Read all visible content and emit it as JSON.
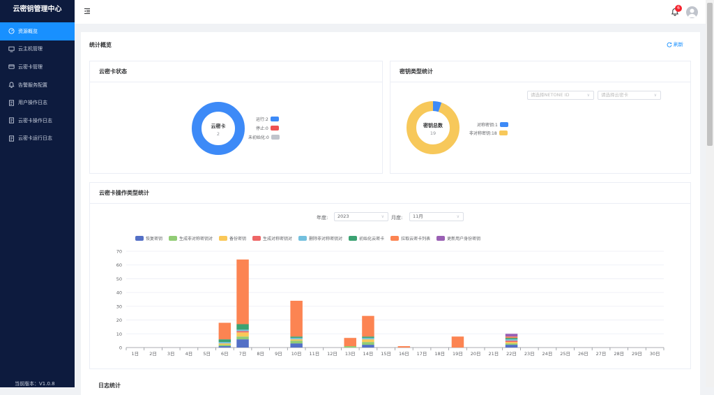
{
  "app": {
    "title": "云密钥管理中心",
    "version": "当前版本：V1.0.8"
  },
  "sidebar": {
    "items": [
      {
        "label": "资源概览",
        "icon": "dashboard-icon",
        "active": true
      },
      {
        "label": "云主机管理",
        "icon": "monitor-icon"
      },
      {
        "label": "云密卡管理",
        "icon": "card-icon"
      },
      {
        "label": "告警服务配置",
        "icon": "alarm-bell-icon"
      },
      {
        "label": "用户操作日志",
        "icon": "document-icon"
      },
      {
        "label": "云密卡操作日志",
        "icon": "document-icon"
      },
      {
        "label": "云密卡运行日志",
        "icon": "document-icon"
      }
    ]
  },
  "header": {
    "notification_count": "6"
  },
  "overview": {
    "title": "统计概览",
    "refresh_label": "刷新"
  },
  "card_status": {
    "title": "云密卡状态",
    "center_label": "云密卡",
    "center_value": "2",
    "legend": [
      {
        "label": "运行:2",
        "color": "#3d8af7",
        "value": 2
      },
      {
        "label": "停止:0",
        "color": "#ee5253",
        "value": 0
      },
      {
        "label": "未初始化:0",
        "color": "#c0c4cc",
        "value": 0
      }
    ]
  },
  "key_types": {
    "title": "密钥类型统计",
    "select_netone_placeholder": "请选择NETONE ID",
    "select_card_placeholder": "请选择云密卡",
    "center_label": "密钥总数",
    "center_value": "19",
    "legend": [
      {
        "label": "对称密钥:1",
        "color": "#3d8af7",
        "value": 1
      },
      {
        "label": "非对称密钥:18",
        "color": "#f7c85a",
        "value": 18
      }
    ]
  },
  "ops_stats": {
    "title": "云密卡操作类型统计",
    "year_label": "年度:",
    "year_value": "2023",
    "month_label": "月度:",
    "month_value": "11月"
  },
  "logs": {
    "title": "日志统计"
  },
  "chart_data": {
    "type": "bar",
    "stacked": true,
    "categories": [
      "1日",
      "2日",
      "3日",
      "4日",
      "5日",
      "6日",
      "7日",
      "8日",
      "9日",
      "10日",
      "11日",
      "12日",
      "13日",
      "14日",
      "15日",
      "16日",
      "17日",
      "18日",
      "19日",
      "20日",
      "21日",
      "22日",
      "23日",
      "24日",
      "25日",
      "26日",
      "27日",
      "28日",
      "29日",
      "30日"
    ],
    "ylim": [
      0,
      70
    ],
    "yticks": [
      0,
      10,
      20,
      30,
      40,
      50,
      60,
      70
    ],
    "legend_position": "top",
    "grid": true,
    "series": [
      {
        "name": "恢复密钥",
        "color": "#5470c6",
        "values": [
          0,
          0,
          0,
          0,
          0,
          1,
          6,
          0,
          0,
          3,
          0,
          0,
          0,
          2,
          0,
          0,
          0,
          0,
          0,
          0,
          0,
          2,
          0,
          0,
          0,
          0,
          0,
          0,
          0,
          0
        ]
      },
      {
        "name": "生成非对称密钥对",
        "color": "#91cc75",
        "values": [
          0,
          0,
          0,
          0,
          0,
          1,
          2,
          0,
          0,
          2,
          0,
          0,
          1,
          2,
          0,
          0,
          0,
          0,
          0,
          0,
          0,
          1,
          0,
          0,
          0,
          0,
          0,
          0,
          0,
          0
        ]
      },
      {
        "name": "备份密钥",
        "color": "#fac858",
        "values": [
          0,
          0,
          0,
          0,
          0,
          1,
          3,
          0,
          0,
          1,
          0,
          0,
          0,
          2,
          0,
          0,
          0,
          0,
          0,
          0,
          0,
          1,
          0,
          0,
          0,
          0,
          0,
          0,
          0,
          0
        ]
      },
      {
        "name": "生成对称密钥对",
        "color": "#ee6666",
        "values": [
          0,
          0,
          0,
          0,
          0,
          0,
          1,
          0,
          0,
          0,
          0,
          0,
          0,
          0,
          0,
          0,
          0,
          0,
          0,
          0,
          0,
          1,
          0,
          0,
          0,
          0,
          0,
          0,
          0,
          0
        ]
      },
      {
        "name": "删除非对称密钥对",
        "color": "#73c0de",
        "values": [
          0,
          0,
          0,
          0,
          0,
          1,
          1,
          0,
          0,
          1,
          0,
          0,
          0,
          1,
          0,
          0,
          0,
          0,
          0,
          0,
          0,
          1,
          0,
          0,
          0,
          0,
          0,
          0,
          0,
          0
        ]
      },
      {
        "name": "初始化云密卡",
        "color": "#3ba272",
        "values": [
          0,
          0,
          0,
          0,
          0,
          2,
          4,
          0,
          0,
          1,
          0,
          0,
          0,
          1,
          0,
          0,
          0,
          0,
          0,
          0,
          0,
          1,
          0,
          0,
          0,
          0,
          0,
          0,
          0,
          0
        ]
      },
      {
        "name": "拉取云密卡列表",
        "color": "#fc8452",
        "values": [
          0,
          0,
          0,
          0,
          0,
          12,
          47,
          0,
          0,
          26,
          0,
          0,
          6,
          15,
          0,
          1,
          0,
          0,
          8,
          0,
          0,
          1,
          0,
          0,
          0,
          0,
          0,
          0,
          0,
          0
        ]
      },
      {
        "name": "更新用户身份密钥",
        "color": "#9a60b4",
        "values": [
          0,
          0,
          0,
          0,
          0,
          0,
          0,
          0,
          0,
          0,
          0,
          0,
          0,
          0,
          0,
          0,
          0,
          0,
          0,
          0,
          0,
          2,
          0,
          0,
          0,
          0,
          0,
          0,
          0,
          0
        ]
      }
    ]
  }
}
